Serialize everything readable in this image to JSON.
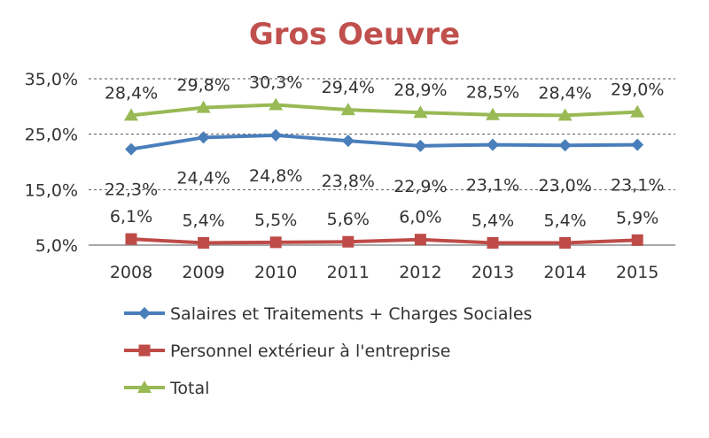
{
  "chart_data": {
    "type": "line",
    "title": "Gros Oeuvre",
    "xlabel": "",
    "ylabel": "",
    "categories": [
      "2008",
      "2009",
      "2010",
      "2011",
      "2012",
      "2013",
      "2014",
      "2015"
    ],
    "ylim": [
      5,
      35
    ],
    "yticks": [
      5,
      15,
      25,
      35
    ],
    "ytick_labels": [
      "5,0%",
      "15,0%",
      "25,0%",
      "35,0%"
    ],
    "grid": true,
    "legend_position": "bottom-left",
    "colors": {
      "title": "#C0504D"
    },
    "series": [
      {
        "name": "Salaires et Traitements  + Charges Sociales",
        "color": "#4A7EBB",
        "marker": "diamond",
        "values": [
          22.3,
          24.4,
          24.8,
          23.8,
          22.9,
          23.1,
          23.0,
          23.1
        ],
        "labels": [
          "22,3%",
          "24,4%",
          "24,8%",
          "23,8%",
          "22,9%",
          "23,1%",
          "23,0%",
          "23,1%"
        ],
        "label_position": "below"
      },
      {
        "name": "Personnel extérieur à l'entreprise",
        "color": "#BE4B48",
        "marker": "square",
        "values": [
          6.1,
          5.4,
          5.5,
          5.6,
          6.0,
          5.4,
          5.4,
          5.9
        ],
        "labels": [
          "6,1%",
          "5,4%",
          "5,5%",
          "5,6%",
          "6,0%",
          "5,4%",
          "5,4%",
          "5,9%"
        ],
        "label_position": "above"
      },
      {
        "name": "Total",
        "color": "#98B954",
        "marker": "triangle",
        "values": [
          28.4,
          29.8,
          30.3,
          29.4,
          28.9,
          28.5,
          28.4,
          29.0
        ],
        "labels": [
          "28,4%",
          "29,8%",
          "30,3%",
          "29,4%",
          "28,9%",
          "28,5%",
          "28,4%",
          "29,0%"
        ],
        "label_position": "above"
      }
    ]
  }
}
